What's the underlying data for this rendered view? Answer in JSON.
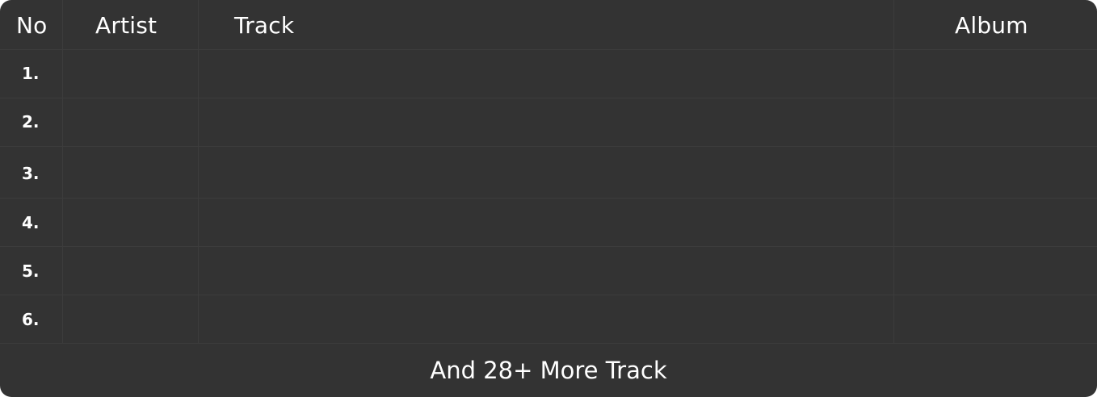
{
  "table": {
    "columns": {
      "no": "No",
      "artist": "Artist",
      "track": "Track",
      "album": "Album"
    },
    "rows": [
      {
        "no": "1.",
        "artist": "",
        "track": "",
        "album": ""
      },
      {
        "no": "2.",
        "artist": "",
        "track": "",
        "album": ""
      },
      {
        "no": "3.",
        "artist": "",
        "track": "",
        "album": ""
      },
      {
        "no": "4.",
        "artist": "",
        "track": "",
        "album": ""
      },
      {
        "no": "5.",
        "artist": "",
        "track": "",
        "album": ""
      },
      {
        "no": "6.",
        "artist": "",
        "track": "",
        "album": ""
      }
    ],
    "footer_label": "And 28+ More Track"
  },
  "colors": {
    "background": "#333333",
    "gridline": "#3c3c3c",
    "text": "#ffffff"
  }
}
